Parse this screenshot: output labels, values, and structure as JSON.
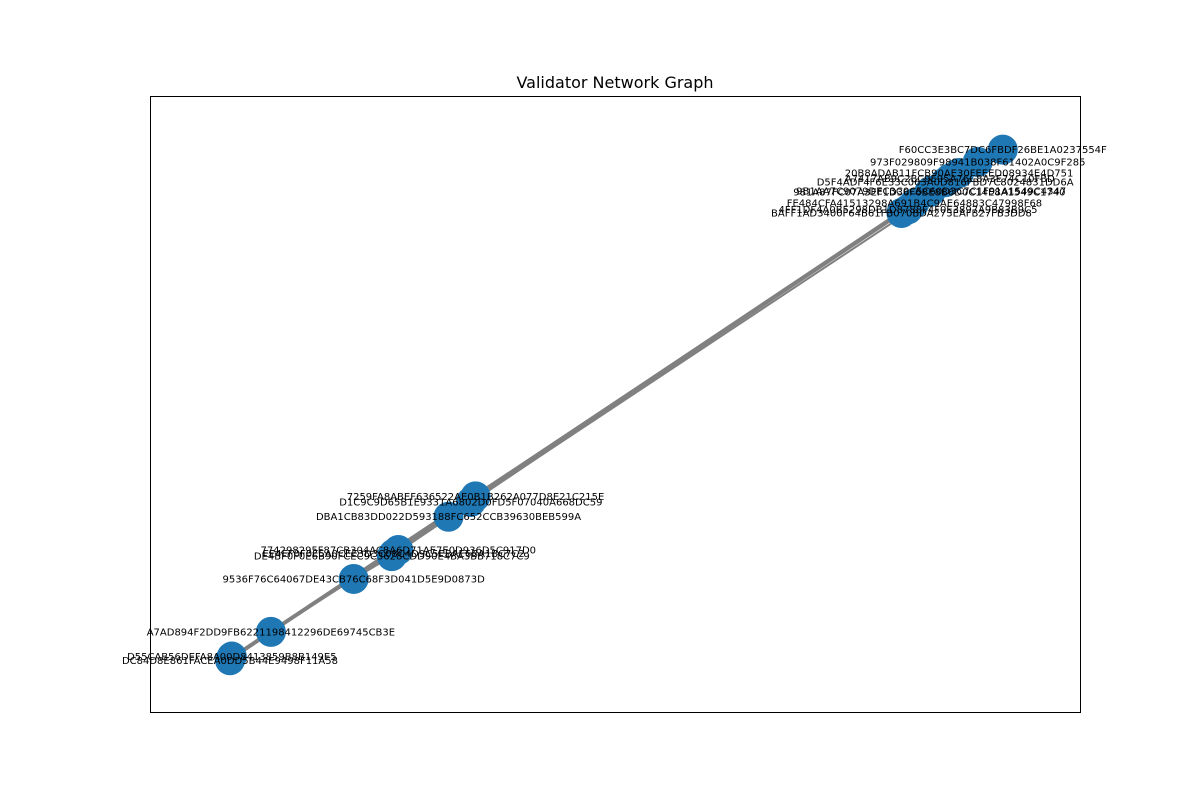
{
  "title": "Validator Network Graph",
  "colors": {
    "node": "#1f77b4",
    "edge": "#808080",
    "frame": "#000000",
    "background": "#ffffff"
  },
  "chart_data": {
    "type": "network",
    "xlim": [
      0,
      1
    ],
    "ylim": [
      0,
      1
    ],
    "grid": false,
    "legend": "none",
    "nodes": [
      {
        "id": "F60CC3E3BC7DC6FBDF26BE1A0237554F",
        "x": 0.917,
        "y": 0.913,
        "label_dx": 0.0,
        "label_dy": 0.0
      },
      {
        "id": "973F029809F98941B038F61402A0C9F285",
        "x": 0.89,
        "y": 0.893,
        "label_dx": 0.0,
        "label_dy": 0.0
      },
      {
        "id": "20B8ADAB11FCB90AE30FEEED08934E4D751",
        "x": 0.87,
        "y": 0.875,
        "label_dx": 0.0,
        "label_dy": 0.0
      },
      {
        "id": "A7417AB9C2BC9E95A76C8A3E74C10FBD",
        "x": 0.86,
        "y": 0.866,
        "label_dx": 0.0,
        "label_dy": 0.0
      },
      {
        "id": "D5F4ADF4F6E33C063A0D816FBD7C8024831DD6A",
        "x": 0.855,
        "y": 0.86,
        "label_dx": 0.0,
        "label_dy": 0.0
      },
      {
        "id": "9B1AA7C9079DEC3C0C5C60D3C7C1F91A1549C4347",
        "x": 0.84,
        "y": 0.846,
        "label_dx": 0.0,
        "label_dy": 0.0
      },
      {
        "id": "981A87FC07A3EF1D36F6BE8B6D0C14E8A1549C1740",
        "x": 0.838,
        "y": 0.844,
        "label_dx": 0.0,
        "label_dy": 0.0
      },
      {
        "id": "FE484CFA41513298A691B4C9AE64883C47998F68",
        "x": 0.822,
        "y": 0.826,
        "label_dx": 0.0,
        "label_dy": 0.0
      },
      {
        "id": "4FF1DF4A0B5298DB1D8788F4F0E3897A9B83B9C5",
        "x": 0.815,
        "y": 0.816,
        "label_dx": 0.0,
        "label_dy": 0.0
      },
      {
        "id": "BAFF1AD3400F64B61FB070BDA273EAFB27FB3DD8",
        "x": 0.808,
        "y": 0.81,
        "label_dx": 0.0,
        "label_dy": 0.0
      },
      {
        "id": "7259FA8ABEF636522AE0B1B262A077D8E21C215E",
        "x": 0.35,
        "y": 0.35,
        "label_dx": 0.0,
        "label_dy": 0.0
      },
      {
        "id": "D1C9C9D65B1E9331A6802D0FD5F07040A668DC59",
        "x": 0.345,
        "y": 0.341,
        "label_dx": 0.0,
        "label_dy": 0.0
      },
      {
        "id": "DBA1CB83DD022D593188FC652CCB39630BEB599A",
        "x": 0.321,
        "y": 0.317,
        "label_dx": 0.0,
        "label_dy": 0.0
      },
      {
        "id": "774298295F87CB304AC8A6D71AE7E0D936D5C917D0",
        "x": 0.267,
        "y": 0.263,
        "label_dx": 0.0,
        "label_dy": 0.0
      },
      {
        "id": "EE4EF0F0E5A0CEE3D3C08C4D9C5EBAE6BA1BC7C2",
        "x": 0.262,
        "y": 0.257,
        "label_dx": 0.0,
        "label_dy": 0.0
      },
      {
        "id": "DE4BF0F0E6B90FCEC9C3628CDD90E4BA3BB718C7C9",
        "x": 0.26,
        "y": 0.253,
        "label_dx": 0.0,
        "label_dy": 0.0
      },
      {
        "id": "9536F76C64067DE43CB76C68F3D041D5E9D0873D",
        "x": 0.219,
        "y": 0.216,
        "label_dx": 0.0,
        "label_dy": 0.0
      },
      {
        "id": "A7AD894F2DD9FB6221198412296DE69745CB3E",
        "x": 0.13,
        "y": 0.13,
        "label_dx": 0.0,
        "label_dy": 0.0
      },
      {
        "id": "D55CAB56DEFA8A00D8413859B8B149E5",
        "x": 0.088,
        "y": 0.09,
        "label_dx": 0.0,
        "label_dy": 0.0
      },
      {
        "id": "DC84D8E861FACEA0DD5B44E9498F11A58",
        "x": 0.086,
        "y": 0.084,
        "label_dx": 0.0,
        "label_dy": 0.0
      }
    ],
    "edges": [
      [
        "F60CC3E3BC7DC6FBDF26BE1A0237554F",
        "973F029809F98941B038F61402A0C9F285"
      ],
      [
        "973F029809F98941B038F61402A0C9F285",
        "20B8ADAB11FCB90AE30FEEED08934E4D751"
      ],
      [
        "20B8ADAB11FCB90AE30FEEED08934E4D751",
        "A7417AB9C2BC9E95A76C8A3E74C10FBD"
      ],
      [
        "A7417AB9C2BC9E95A76C8A3E74C10FBD",
        "D5F4ADF4F6E33C063A0D816FBD7C8024831DD6A"
      ],
      [
        "D5F4ADF4F6E33C063A0D816FBD7C8024831DD6A",
        "9B1AA7C9079DEC3C0C5C60D3C7C1F91A1549C4347"
      ],
      [
        "9B1AA7C9079DEC3C0C5C60D3C7C1F91A1549C4347",
        "981A87FC07A3EF1D36F6BE8B6D0C14E8A1549C1740"
      ],
      [
        "981A87FC07A3EF1D36F6BE8B6D0C14E8A1549C1740",
        "FE484CFA41513298A691B4C9AE64883C47998F68"
      ],
      [
        "FE484CFA41513298A691B4C9AE64883C47998F68",
        "4FF1DF4A0B5298DB1D8788F4F0E3897A9B83B9C5"
      ],
      [
        "4FF1DF4A0B5298DB1D8788F4F0E3897A9B83B9C5",
        "BAFF1AD3400F64B61FB070BDA273EAFB27FB3DD8"
      ],
      [
        "BAFF1AD3400F64B61FB070BDA273EAFB27FB3DD8",
        "7259FA8ABEF636522AE0B1B262A077D8E21C215E"
      ],
      [
        "F60CC3E3BC7DC6FBDF26BE1A0237554F",
        "D1C9C9D65B1E9331A6802D0FD5F07040A668DC59"
      ],
      [
        "973F029809F98941B038F61402A0C9F285",
        "DBA1CB83DD022D593188FC652CCB39630BEB599A"
      ],
      [
        "20B8ADAB11FCB90AE30FEEED08934E4D751",
        "774298295F87CB304AC8A6D71AE7E0D936D5C917D0"
      ],
      [
        "A7417AB9C2BC9E95A76C8A3E74C10FBD",
        "EE4EF0F0E5A0CEE3D3C08C4D9C5EBAE6BA1BC7C2"
      ],
      [
        "D5F4ADF4F6E33C063A0D816FBD7C8024831DD6A",
        "DE4BF0F0E6B90FCEC9C3628CDD90E4BA3BB718C7C9"
      ],
      [
        "7259FA8ABEF636522AE0B1B262A077D8E21C215E",
        "D1C9C9D65B1E9331A6802D0FD5F07040A668DC59"
      ],
      [
        "D1C9C9D65B1E9331A6802D0FD5F07040A668DC59",
        "DBA1CB83DD022D593188FC652CCB39630BEB599A"
      ],
      [
        "DBA1CB83DD022D593188FC652CCB39630BEB599A",
        "774298295F87CB304AC8A6D71AE7E0D936D5C917D0"
      ],
      [
        "774298295F87CB304AC8A6D71AE7E0D936D5C917D0",
        "EE4EF0F0E5A0CEE3D3C08C4D9C5EBAE6BA1BC7C2"
      ],
      [
        "EE4EF0F0E5A0CEE3D3C08C4D9C5EBAE6BA1BC7C2",
        "DE4BF0F0E6B90FCEC9C3628CDD90E4BA3BB718C7C9"
      ],
      [
        "DE4BF0F0E6B90FCEC9C3628CDD90E4BA3BB718C7C9",
        "9536F76C64067DE43CB76C68F3D041D5E9D0873D"
      ],
      [
        "9536F76C64067DE43CB76C68F3D041D5E9D0873D",
        "A7AD894F2DD9FB6221198412296DE69745CB3E"
      ],
      [
        "A7AD894F2DD9FB6221198412296DE69745CB3E",
        "D55CAB56DEFA8A00D8413859B8B149E5"
      ],
      [
        "D55CAB56DEFA8A00D8413859B8B149E5",
        "DC84D8E861FACEA0DD5B44E9498F11A58"
      ],
      [
        "9B1AA7C9079DEC3C0C5C60D3C7C1F91A1549C4347",
        "9536F76C64067DE43CB76C68F3D041D5E9D0873D"
      ],
      [
        "981A87FC07A3EF1D36F6BE8B6D0C14E8A1549C1740",
        "A7AD894F2DD9FB6221198412296DE69745CB3E"
      ],
      [
        "FE484CFA41513298A691B4C9AE64883C47998F68",
        "D55CAB56DEFA8A00D8413859B8B149E5"
      ],
      [
        "4FF1DF4A0B5298DB1D8788F4F0E3897A9B83B9C5",
        "DC84D8E861FACEA0DD5B44E9498F11A58"
      ]
    ]
  }
}
